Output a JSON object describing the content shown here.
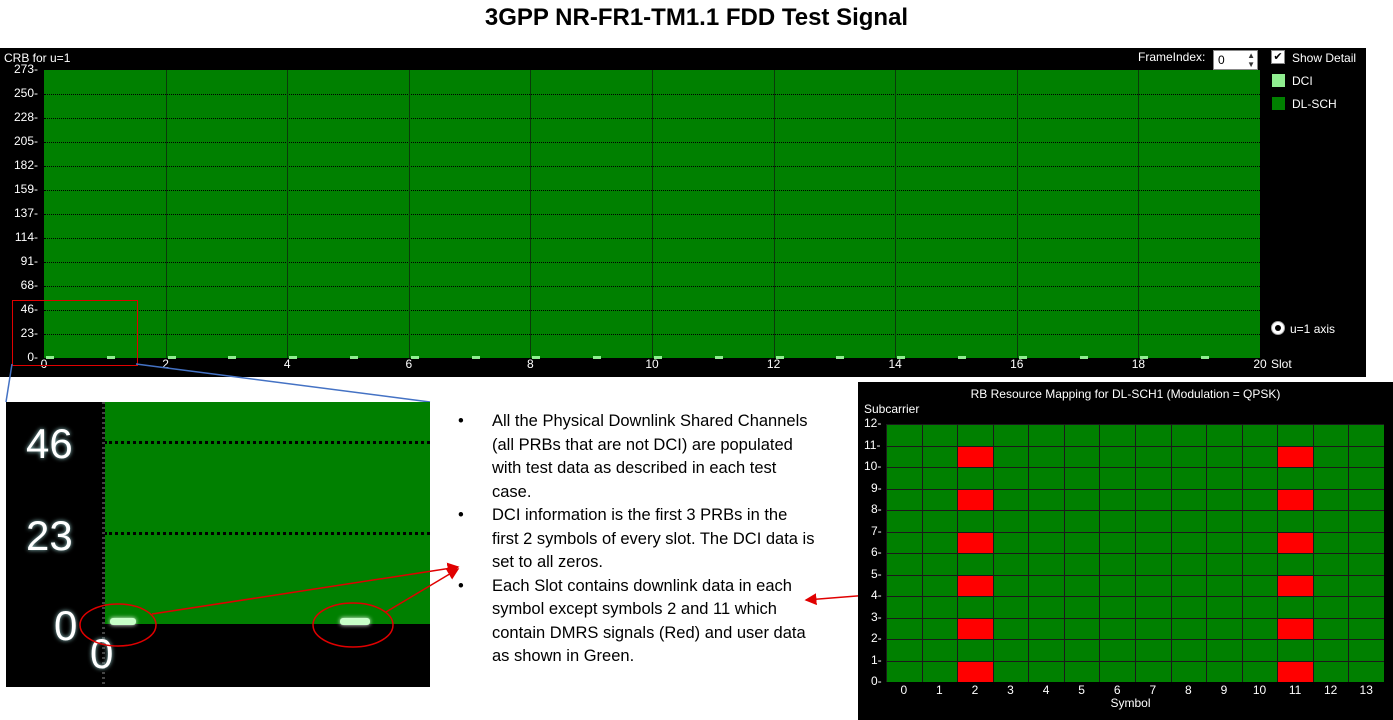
{
  "page_title": "3GPP NR-FR1-TM1.1 FDD Test Signal",
  "main_chart": {
    "y_title": "CRB for u=1",
    "y_ticks": [
      "273",
      "250",
      "228",
      "205",
      "182",
      "159",
      "137",
      "114",
      "91",
      "68",
      "46",
      "23",
      "0"
    ],
    "x_ticks": [
      "0",
      "2",
      "4",
      "6",
      "8",
      "10",
      "12",
      "14",
      "16",
      "18",
      "20"
    ],
    "x_unit": "Slot",
    "frame_index_label": "FrameIndex:",
    "frame_index_value": "0",
    "show_detail_label": "Show Detail",
    "show_detail_checked": "✔",
    "legend": [
      {
        "label": "DCI",
        "color": "#90ee90"
      },
      {
        "label": "DL-SCH",
        "color": "#008000"
      }
    ],
    "axis_option_label": "u=1 axis"
  },
  "zoom_inset": {
    "y_ticks": [
      "46",
      "23",
      "0"
    ],
    "x_tick": "0"
  },
  "bullets": [
    "All the Physical Downlink Shared Channels (all PRBs that are not DCI) are populated with test data as described in each test case.",
    "DCI information is the first 3 PRBs in the first 2 symbols of every slot. The DCI data is set to all zeros.",
    "Each Slot contains downlink data in each symbol except symbols 2 and 11 which contain DMRS signals (Red) and user data as shown in Green."
  ],
  "rb_chart": {
    "title": "RB Resource Mapping for DL-SCH1 (Modulation = QPSK)",
    "y_title": "Subcarrier",
    "x_title": "Symbol",
    "y_ticks": [
      "12",
      "11",
      "10",
      "9",
      "8",
      "7",
      "6",
      "5",
      "4",
      "3",
      "2",
      "1",
      "0"
    ],
    "x_ticks": [
      "0",
      "1",
      "2",
      "3",
      "4",
      "5",
      "6",
      "7",
      "8",
      "9",
      "10",
      "11",
      "12",
      "13"
    ],
    "dmrs_symbols": [
      2,
      11
    ],
    "dmrs_subcarriers": [
      0,
      2,
      4,
      6,
      8,
      10
    ],
    "data_color": "#008000",
    "dmrs_color": "#ff0000"
  }
}
